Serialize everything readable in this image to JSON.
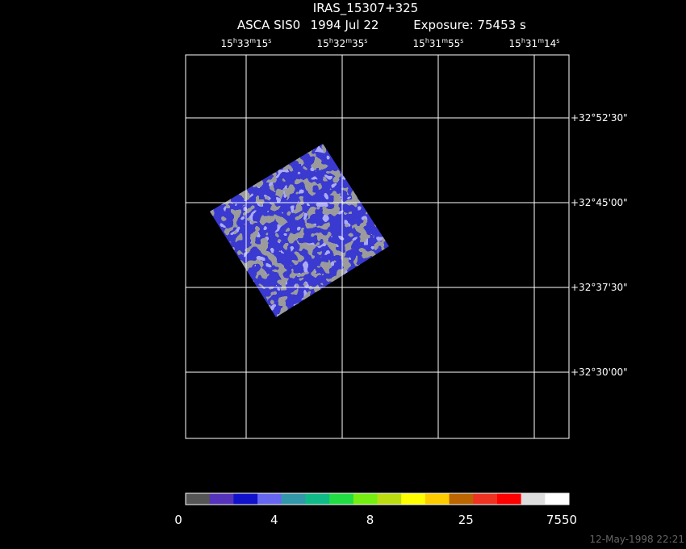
{
  "header": {
    "title": "IRAS_15307+325",
    "instrument": "ASCA SIS0",
    "date": "1994 Jul 22",
    "exposure": "Exposure: 75453 s"
  },
  "ra_labels": [
    [
      "15",
      "h",
      "33",
      "m",
      "15",
      "s"
    ],
    [
      "15",
      "h",
      "32",
      "m",
      "35",
      "s"
    ],
    [
      "15",
      "h",
      "31",
      "m",
      "55",
      "s"
    ],
    [
      "15",
      "h",
      "31",
      "m",
      "14",
      "s"
    ]
  ],
  "dec_labels": [
    "+32°52'30\"",
    "+32°45'00\"",
    "+32°37'30\"",
    "+32°30'00\""
  ],
  "colorbar": {
    "colors": [
      "#555555",
      "#5533bb",
      "#1111cc",
      "#6666ee",
      "#3399aa",
      "#11bb88",
      "#22dd44",
      "#77ee11",
      "#bbdd11",
      "#ffff00",
      "#ffcc00",
      "#bb6600",
      "#ee3322",
      "#ff0000",
      "#dddddd",
      "#ffffff"
    ],
    "labels": [
      0,
      4,
      8,
      25,
      7550
    ]
  },
  "footer": "12-May-1998 22:21"
}
